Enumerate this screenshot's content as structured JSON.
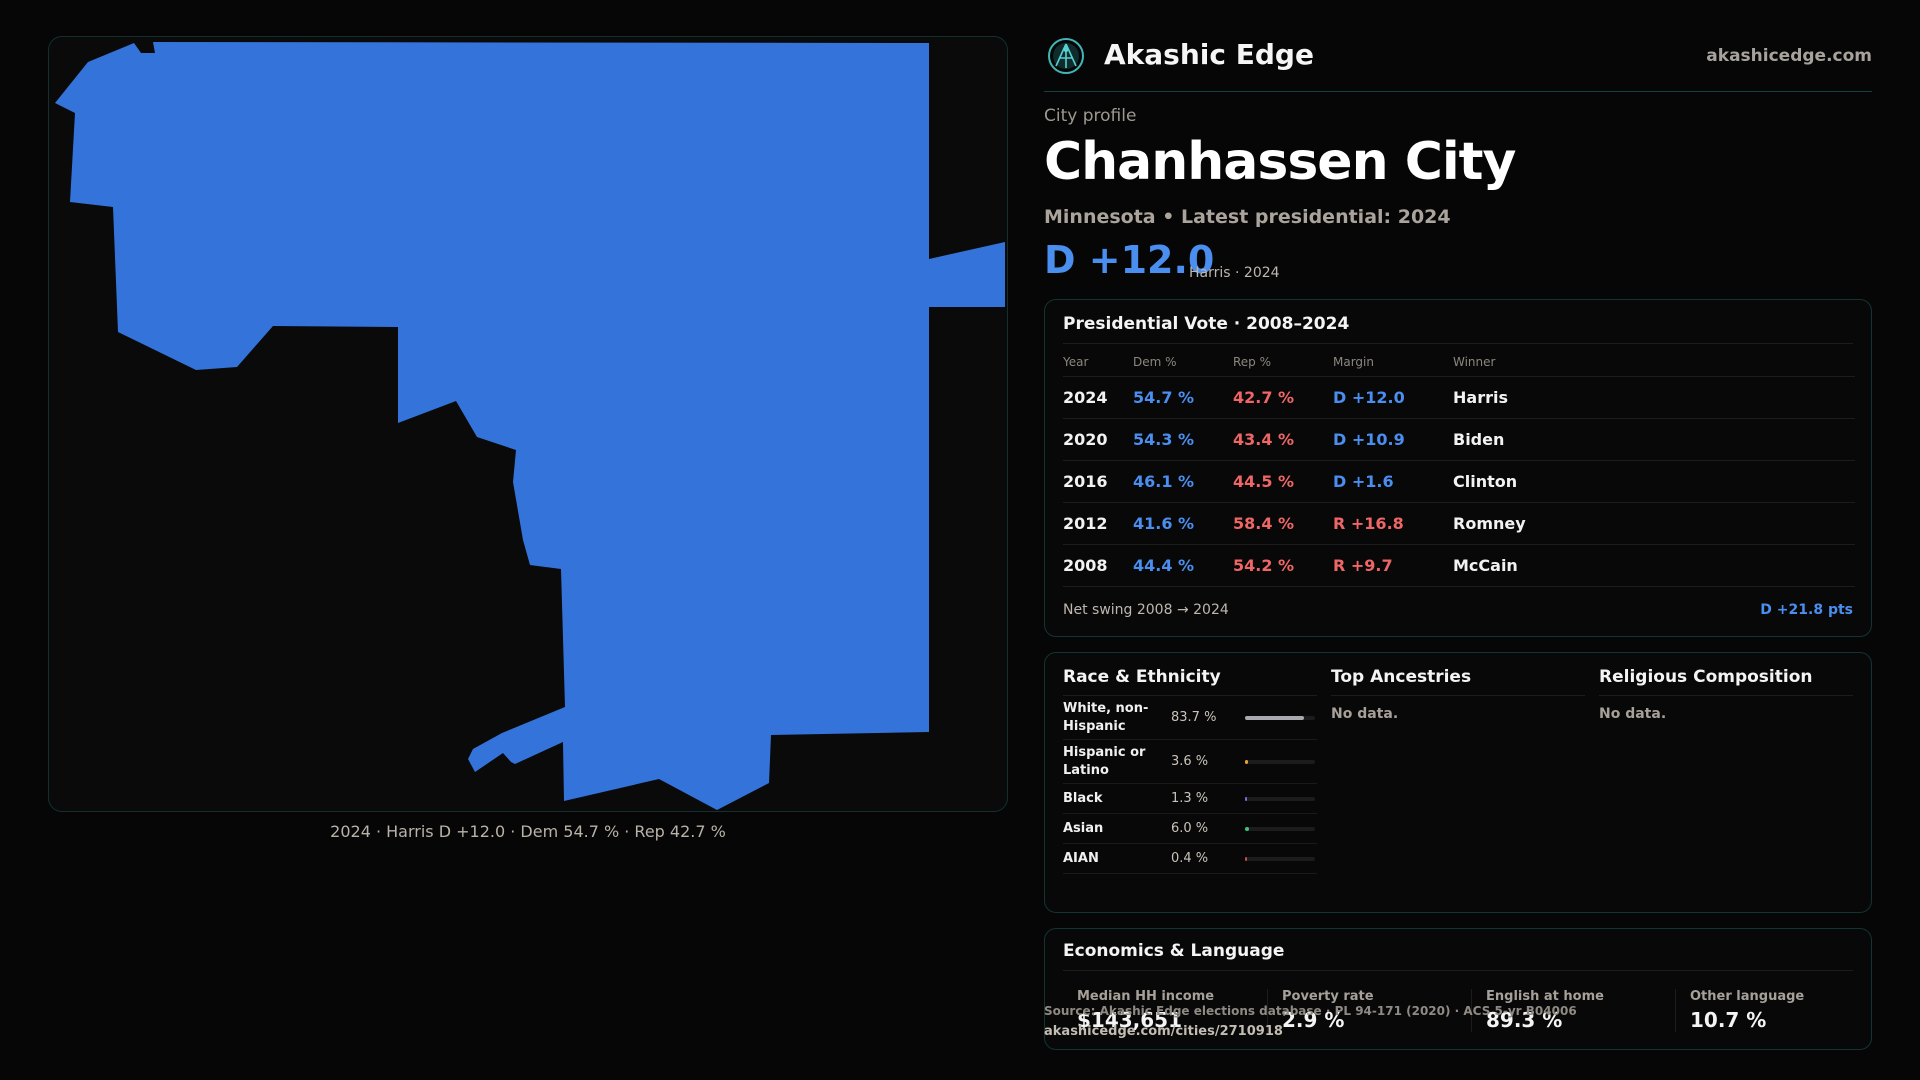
{
  "brand": {
    "name": "Akashic Edge",
    "site": "akashicedge.com"
  },
  "profile": {
    "eyebrow": "City profile",
    "title": "Chanhassen City",
    "subtitle": "Minnesota • Latest presidential: 2024",
    "margin": "D +12.0",
    "margin_note": "Harris · 2024"
  },
  "map": {
    "fill_color": "#3474da",
    "caption": "2024 · Harris D +12.0 · Dem 54.7 % · Rep 42.7 %"
  },
  "presidential": {
    "title": "Presidential Vote · 2008–2024",
    "columns": [
      "Year",
      "Dem %",
      "Rep %",
      "Margin",
      "Winner"
    ],
    "rows": [
      {
        "year": "2024",
        "dem": "54.7 %",
        "rep": "42.7 %",
        "margin": "D +12.0",
        "party": "D",
        "winner": "Harris"
      },
      {
        "year": "2020",
        "dem": "54.3 %",
        "rep": "43.4 %",
        "margin": "D +10.9",
        "party": "D",
        "winner": "Biden"
      },
      {
        "year": "2016",
        "dem": "46.1 %",
        "rep": "44.5 %",
        "margin": "D +1.6",
        "party": "D",
        "winner": "Clinton"
      },
      {
        "year": "2012",
        "dem": "41.6 %",
        "rep": "58.4 %",
        "margin": "R +16.8",
        "party": "R",
        "winner": "Romney"
      },
      {
        "year": "2008",
        "dem": "44.4 %",
        "rep": "54.2 %",
        "margin": "R +9.7",
        "party": "R",
        "winner": "McCain"
      }
    ],
    "swing_label": "Net swing 2008 → 2024",
    "swing_value": "D +21.8 pts"
  },
  "race": {
    "title": "Race & Ethnicity",
    "rows": [
      {
        "name": "White, non-Hispanic",
        "pct": "83.7 %",
        "value": 83.7,
        "color": "#a9a9ad"
      },
      {
        "name": "Hispanic or Latino",
        "pct": "3.6 %",
        "value": 3.6,
        "color": "#e8a13a"
      },
      {
        "name": "Black",
        "pct": "1.3 %",
        "value": 1.3,
        "color": "#7a6fd8"
      },
      {
        "name": "Asian",
        "pct": "6.0 %",
        "value": 6.0,
        "color": "#3cc47a"
      },
      {
        "name": "AIAN",
        "pct": "0.4 %",
        "value": 0.4,
        "color": "#c0504d"
      }
    ]
  },
  "ancestries": {
    "title": "Top Ancestries",
    "empty": "No data."
  },
  "religion": {
    "title": "Religious Composition",
    "empty": "No data."
  },
  "economics": {
    "title": "Economics & Language",
    "stats": [
      {
        "label": "Median HH income",
        "value": "$143,651"
      },
      {
        "label": "Poverty rate",
        "value": "2.9 %"
      },
      {
        "label": "English at home",
        "value": "89.3 %"
      },
      {
        "label": "Other language",
        "value": "10.7 %"
      }
    ]
  },
  "footer": {
    "source": "Source: Akashic Edge elections database · PL 94-171 (2020) · ACS 5-yr B04006",
    "url": "akashicedge.com/cities/2710918"
  }
}
